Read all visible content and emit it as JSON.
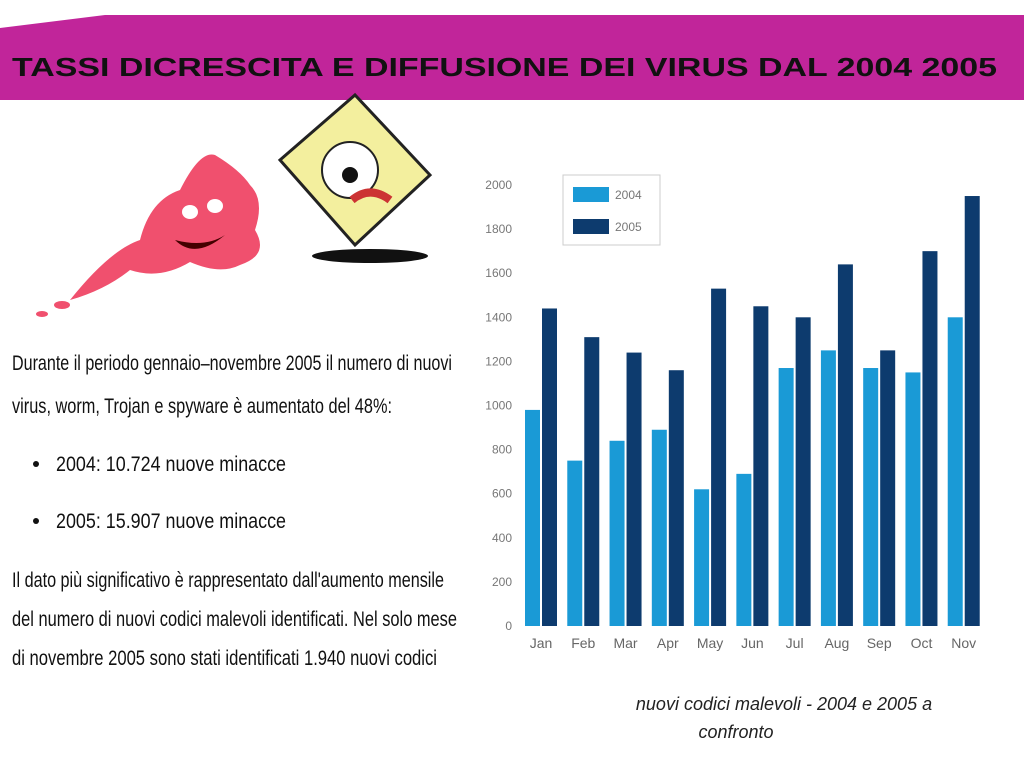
{
  "header": {
    "title": "TASSI DICRESCITA E DIFFUSIONE DEI VIRUS DAL 2004 2005"
  },
  "body": {
    "intro": [
      "Durante il periodo gennaio–novembre 2005 il numero di nuovi",
      "virus, worm, Trojan e spyware è aumentato del 48%:"
    ],
    "bullets": [
      "2004:   10.724  nuove minacce",
      "2005:   15.907  nuove minacce"
    ],
    "outro": [
      "Il dato più significativo è rappresentato dall'aumento mensile",
      "del numero di nuovi codici malevoli identificati. Nel solo mese",
      "di novembre 2005 sono stati identificati 1.940 nuovi codici"
    ]
  },
  "chart_data": {
    "type": "bar",
    "categories": [
      "Jan",
      "Feb",
      "Mar",
      "Apr",
      "May",
      "Jun",
      "Jul",
      "Aug",
      "Sep",
      "Oct",
      "Nov"
    ],
    "series": [
      {
        "name": "2004",
        "color": "#1a9ad6",
        "values": [
          980,
          750,
          840,
          890,
          620,
          690,
          1170,
          1250,
          1170,
          1150,
          1400
        ]
      },
      {
        "name": "2005",
        "color": "#0d3b6e",
        "values": [
          1440,
          1310,
          1240,
          1160,
          1530,
          1450,
          1400,
          1640,
          1250,
          1700,
          1950
        ]
      }
    ],
    "ylim": [
      0,
      2000
    ],
    "yticks": [
      0,
      200,
      400,
      600,
      800,
      1000,
      1200,
      1400,
      1600,
      1800,
      2000
    ],
    "legend": "upper-left",
    "caption": [
      "nuovi  codici  malevoli  -  2004  e  2005  a",
      "confronto"
    ]
  }
}
